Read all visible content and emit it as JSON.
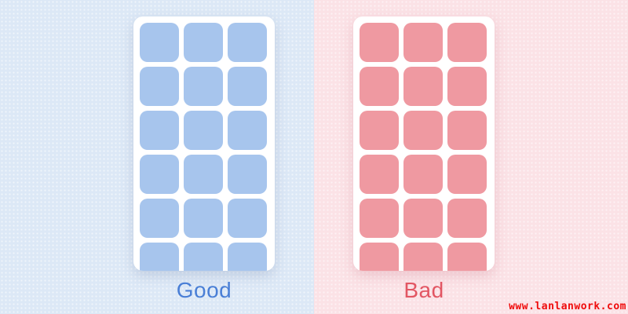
{
  "panels": [
    {
      "id": "good",
      "label": "Good",
      "background_color": "#dce8f6",
      "card_color": "#ffffff",
      "tile_color": "#a7c5ed",
      "label_color": "#4a7fd6",
      "grid": {
        "columns": 3,
        "rows": 6,
        "total_tiles": 18
      }
    },
    {
      "id": "bad",
      "label": "Bad",
      "background_color": "#fbe2e6",
      "card_color": "#ffffff",
      "tile_color": "#ef99a1",
      "label_color": "#e25663",
      "grid": {
        "columns": 3,
        "rows": 6,
        "total_tiles": 18
      }
    }
  ],
  "watermark": {
    "text": "www.lanlanwork.com",
    "color": "#ef0b0b"
  }
}
